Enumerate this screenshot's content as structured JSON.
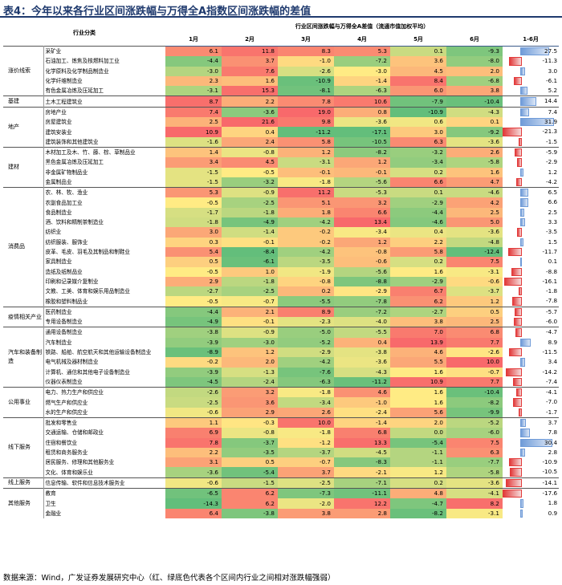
{
  "title": "表4：今年以来各行业区间涨跌幅与万得全A指数区间涨跌幅的差值",
  "header": {
    "category_label": "行业分类",
    "span_label": "行业区间涨跌幅与万得全A差值（流通市值加权平均）",
    "months": [
      "1月",
      "2月",
      "3月",
      "4月",
      "5月",
      "6月",
      "1-6月"
    ]
  },
  "colors": {
    "bar_pos": "#6f9bd8",
    "bar_neg": "#e23a3a",
    "bar_neg_fill": "#f5dada",
    "bar_pos_fill": "#dbe6f6"
  },
  "groups": [
    {
      "name": "涨价线索",
      "rows": [
        {
          "industry": "采矿业",
          "v": [
            6.1,
            11.8,
            8.3,
            5.3,
            0.1,
            -9.3
          ],
          "h1": 27.5
        },
        {
          "industry": "石油加工、炼焦及核燃料加工业",
          "v": [
            -4.4,
            3.7,
            -1.0,
            -7.2,
            3.6,
            -8.0
          ],
          "h1": -11.3
        },
        {
          "industry": "化学原料及化学制品制造业",
          "v": [
            -3.0,
            7.6,
            -2.6,
            -3.0,
            4.5,
            2.0
          ],
          "h1": 3.0
        },
        {
          "industry": "化学纤维制造业",
          "v": [
            2.3,
            1.6,
            -10.9,
            -1.4,
            8.4,
            -6.8
          ],
          "h1": -6.1
        },
        {
          "industry": "有色金属冶炼及压延加工",
          "v": [
            -3.1,
            15.3,
            -8.1,
            -6.3,
            6.0,
            3.8
          ],
          "h1": 5.2
        }
      ]
    },
    {
      "name": "基建",
      "rows": [
        {
          "industry": "土木工程建筑业",
          "v": [
            8.7,
            2.2,
            7.8,
            10.6,
            -7.9,
            -10.4
          ],
          "h1": 14.4
        }
      ]
    },
    {
      "name": "地产",
      "rows": [
        {
          "industry": "房地产业",
          "v": [
            7.4,
            -3.6,
            19.0,
            0.8,
            -10.9,
            -4.3
          ],
          "h1": 7.4
        },
        {
          "industry": "房屋建筑业",
          "v": [
            2.5,
            21.6,
            9.8,
            -3.6,
            0.6,
            0.1
          ],
          "h1": 31.9
        },
        {
          "industry": "建筑安装业",
          "v": [
            10.9,
            0.4,
            -11.2,
            -17.1,
            3.0,
            -9.2
          ],
          "h1": -21.3
        },
        {
          "industry": "建筑装饰和其他建筑业",
          "v": [
            -1.6,
            2.4,
            5.8,
            -10.5,
            6.3,
            -3.6
          ],
          "h1": -1.5
        }
      ]
    },
    {
      "name": "建材",
      "rows": [
        {
          "industry": "木材加工及木、竹、藤、棕、草制品业",
          "v": [
            1.4,
            -0.8,
            1.2,
            -8.2,
            -3.2,
            2.6
          ],
          "h1": -5.9
        },
        {
          "industry": "黑色金属冶炼及压延加工",
          "v": [
            3.4,
            4.5,
            -3.1,
            1.2,
            -3.4,
            -5.8
          ],
          "h1": -2.9
        },
        {
          "industry": "非金属矿物制品业",
          "v": [
            -1.5,
            -0.5,
            -0.1,
            -0.1,
            0.2,
            1.6
          ],
          "h1": 1.2
        },
        {
          "industry": "金属制品业",
          "v": [
            -1.5,
            -3.2,
            -1.8,
            -5.6,
            6.6,
            4.7
          ],
          "h1": -4.2
        }
      ]
    },
    {
      "name": "消费品",
      "rows": [
        {
          "industry": "农、林、牧、渔业",
          "v": [
            5.3,
            -0.9,
            11.2,
            -5.3,
            0.1,
            -4.6
          ],
          "h1": 6.5
        },
        {
          "industry": "农副食品加工业",
          "v": [
            -0.5,
            -2.5,
            5.1,
            3.2,
            -2.9,
            4.2
          ],
          "h1": 6.6
        },
        {
          "industry": "食品制造业",
          "v": [
            -1.7,
            -1.8,
            1.8,
            6.6,
            -4.4,
            2.5
          ],
          "h1": 2.5
        },
        {
          "industry": "酒、饮料和精制茶制造业",
          "v": [
            -1.8,
            -4.9,
            -4.2,
            13.4,
            -4.6,
            5.0
          ],
          "h1": 3.3
        },
        {
          "industry": "纺织业",
          "v": [
            3.0,
            -1.4,
            -0.2,
            -3.4,
            0.4,
            -3.6
          ],
          "h1": -3.5
        },
        {
          "industry": "纺织服装、服饰业",
          "v": [
            0.3,
            -0.1,
            -0.2,
            1.2,
            2.2,
            -4.8
          ],
          "h1": 1.5
        },
        {
          "industry": "皮革、毛皮、羽毛及其制品和制鞋业",
          "v": [
            5.4,
            -8.4,
            -4.2,
            -0.8,
            5.8,
            -12.4
          ],
          "h1": -11.7
        },
        {
          "industry": "家具制造业",
          "v": [
            0.5,
            -6.1,
            -3.5,
            -0.6,
            0.2,
            7.5
          ],
          "h1": 0.1
        },
        {
          "industry": "造纸及纸制品业",
          "v": [
            -0.5,
            1.0,
            -1.9,
            -5.6,
            1.6,
            -3.1
          ],
          "h1": -8.8
        },
        {
          "industry": "印刷和记录媒介复制业",
          "v": [
            2.9,
            -1.8,
            -0.8,
            -8.8,
            -2.9,
            -0.6
          ],
          "h1": -16.1
        },
        {
          "industry": "文教、工美、体育和娱乐用品制造业",
          "v": [
            -2.7,
            -2.5,
            0.2,
            -2.9,
            6.7,
            -3.7
          ],
          "h1": -1.8
        },
        {
          "industry": "橡胶和塑料制品业",
          "v": [
            -0.5,
            -0.7,
            -5.5,
            -7.8,
            6.2,
            1.2
          ],
          "h1": -7.8
        }
      ]
    },
    {
      "name": "疫情相关产业",
      "rows": [
        {
          "industry": "医药制造业",
          "v": [
            -4.4,
            2.1,
            8.9,
            -7.2,
            -2.7,
            0.5
          ],
          "h1": -5.7
        },
        {
          "industry": "专用设备制造业",
          "v": [
            -4.9,
            -0.1,
            -2.3,
            -4.0,
            3.8,
            2.5
          ],
          "h1": -6.0
        }
      ]
    },
    {
      "name": "汽车和装备制造",
      "rows": [
        {
          "industry": "通用设备制造业",
          "v": [
            -3.8,
            -0.9,
            -5.0,
            -5.5,
            7.0,
            6.8
          ],
          "h1": -4.7
        },
        {
          "industry": "汽车制造业",
          "v": [
            -3.9,
            -3.0,
            -5.2,
            0.4,
            13.9,
            7.7
          ],
          "h1": 8.9
        },
        {
          "industry": "铁路、船舶、航空航天和其他运输设备制造业",
          "v": [
            -8.9,
            1.2,
            -2.9,
            -3.8,
            4.6,
            -2.6
          ],
          "h1": -11.5
        },
        {
          "industry": "电气机械及器材制造业",
          "v": [
            -0.2,
            2.0,
            -4.2,
            -3.6,
            5.5,
            10.0
          ],
          "h1": 3.4
        },
        {
          "industry": "计算机、通信和其他电子设备制造业",
          "v": [
            -3.9,
            -1.3,
            -7.6,
            -4.3,
            1.6,
            -0.7
          ],
          "h1": -14.2
        },
        {
          "industry": "仪器仪表制造业",
          "v": [
            -4.5,
            -2.4,
            -6.3,
            -11.2,
            10.9,
            7.7
          ],
          "h1": -7.4
        }
      ]
    },
    {
      "name": "公用事业",
      "rows": [
        {
          "industry": "电力、热力生产和供应业",
          "v": [
            -2.6,
            3.2,
            -1.8,
            4.6,
            1.6,
            -10.4
          ],
          "h1": -4.1
        },
        {
          "industry": "燃气生产和供应业",
          "v": [
            -2.5,
            3.6,
            -3.4,
            -1.0,
            1.6,
            -8.2
          ],
          "h1": -7.0
        },
        {
          "industry": "水的生产和供应业",
          "v": [
            -0.6,
            2.9,
            2.6,
            -2.4,
            5.6,
            -9.9
          ],
          "h1": -1.7
        }
      ]
    },
    {
      "name": "线下服务",
      "rows": [
        {
          "industry": "批发和零售业",
          "v": [
            1.1,
            -0.3,
            10.0,
            -1.4,
            2.0,
            -5.2
          ],
          "h1": 3.7
        },
        {
          "industry": "交通运输、仓储和邮政业",
          "v": [
            6.9,
            -0.8,
            -1.8,
            6.8,
            0.0,
            -6.0
          ],
          "h1": 7.8
        },
        {
          "industry": "住宿和餐饮业",
          "v": [
            7.8,
            -3.7,
            -1.2,
            13.3,
            -5.4,
            7.5
          ],
          "h1": 30.4
        },
        {
          "industry": "租赁和商务服务业",
          "v": [
            2.2,
            -3.5,
            -3.7,
            -4.5,
            -1.1,
            6.3
          ],
          "h1": 2.8
        },
        {
          "industry": "居民服务、修理和其他服务业",
          "v": [
            3.1,
            0.5,
            -0.7,
            -8.3,
            -1.1,
            -7.7
          ],
          "h1": -10.9
        },
        {
          "industry": "文化、体育和娱乐业",
          "v": [
            -3.6,
            -5.4,
            3.7,
            -2.1,
            1.2,
            -5.8
          ],
          "h1": -10.5
        }
      ]
    },
    {
      "name": "线上服务",
      "rows": [
        {
          "industry": "信息传输、软件和信息技术服务业",
          "v": [
            -0.6,
            -1.5,
            -2.5,
            -7.1,
            0.2,
            -3.6
          ],
          "h1": -14.1
        }
      ]
    },
    {
      "name": "其他服务",
      "rows": [
        {
          "industry": "教育",
          "v": [
            -6.5,
            6.2,
            -7.3,
            -11.1,
            4.8,
            -4.1
          ],
          "h1": -17.6
        },
        {
          "industry": "卫生",
          "v": [
            -14.3,
            6.2,
            -2.0,
            12.2,
            -4.7,
            8.2
          ],
          "h1": 1.8
        },
        {
          "industry": "金融业",
          "v": [
            6.4,
            -3.8,
            3.8,
            2.8,
            -8.2,
            -3.1
          ],
          "h1": 0.9
        }
      ]
    }
  ],
  "source": "数据来源：Wind，广发证券发展研究中心（红、绿底色代表各个区间内行业之间相对涨跌幅强弱）"
}
